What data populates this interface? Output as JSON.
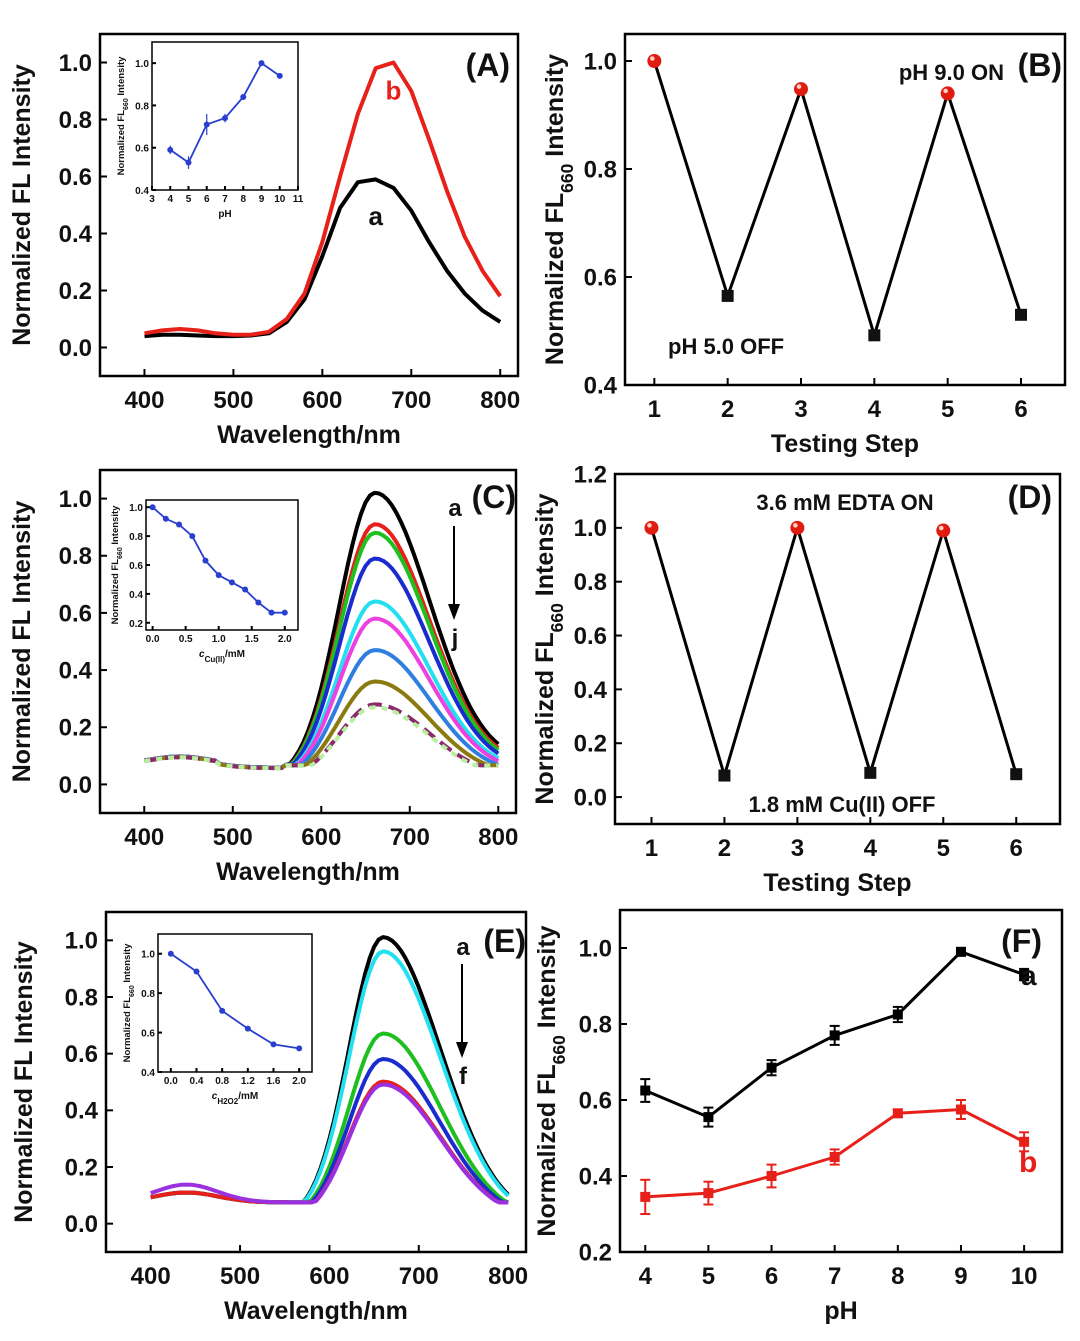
{
  "chart_data": [
    {
      "panel": "(A)",
      "type": "line",
      "xlabel": "Wavelength/nm",
      "ylabel": "Normalized FL Intensity",
      "xlim": [
        350,
        820
      ],
      "ylim": [
        -0.1,
        1.1
      ],
      "xticks": [
        400,
        500,
        600,
        700,
        800
      ],
      "yticks": [
        0.0,
        0.2,
        0.4,
        0.6,
        0.8,
        1.0
      ],
      "curve_labels": [
        "a",
        "b"
      ],
      "series": [
        {
          "name": "a",
          "color": "#000000",
          "x": [
            400,
            420,
            440,
            460,
            480,
            500,
            520,
            540,
            560,
            580,
            600,
            620,
            640,
            660,
            680,
            700,
            720,
            740,
            760,
            780,
            800
          ],
          "y": [
            0.04,
            0.045,
            0.045,
            0.042,
            0.04,
            0.04,
            0.042,
            0.05,
            0.09,
            0.17,
            0.32,
            0.49,
            0.58,
            0.59,
            0.56,
            0.48,
            0.37,
            0.27,
            0.19,
            0.13,
            0.09
          ]
        },
        {
          "name": "b",
          "color": "#e8201a",
          "x": [
            400,
            420,
            440,
            460,
            480,
            500,
            520,
            540,
            560,
            580,
            600,
            620,
            640,
            660,
            680,
            700,
            720,
            740,
            760,
            780,
            800
          ],
          "y": [
            0.05,
            0.06,
            0.065,
            0.06,
            0.05,
            0.045,
            0.045,
            0.055,
            0.1,
            0.19,
            0.37,
            0.6,
            0.82,
            0.98,
            1.0,
            0.9,
            0.73,
            0.55,
            0.39,
            0.27,
            0.18
          ]
        }
      ],
      "inset": {
        "type": "line",
        "xlabel": "pH",
        "ylabel": "Normalized FL660 Intensity",
        "xlim": [
          3,
          11
        ],
        "ylim": [
          0.4,
          1.1
        ],
        "xticks": [
          3,
          4,
          5,
          6,
          7,
          8,
          9,
          10,
          11
        ],
        "yticks": [
          0.4,
          0.6,
          0.8,
          1.0
        ],
        "color": "#2a3fcf",
        "x": [
          4,
          5,
          6,
          7,
          8,
          9,
          10
        ],
        "y": [
          0.59,
          0.53,
          0.71,
          0.74,
          0.84,
          1.0,
          0.94
        ],
        "err": [
          0.02,
          0.03,
          0.05,
          0.02,
          0.01,
          0.01,
          0.01
        ]
      }
    },
    {
      "panel": "(B)",
      "type": "line",
      "xlabel": "Testing Step",
      "ylabel": "Normalized FL660 Intensity",
      "xlim": [
        0.6,
        6.6
      ],
      "ylim": [
        0.4,
        1.05
      ],
      "xticks": [
        1,
        2,
        3,
        4,
        5,
        6
      ],
      "yticks": [
        0.4,
        0.6,
        0.8,
        1.0
      ],
      "annotations": [
        "pH 9.0 ON",
        "pH 5.0 OFF"
      ],
      "x": [
        1,
        2,
        3,
        4,
        5,
        6
      ],
      "y": [
        1.0,
        0.565,
        0.948,
        0.492,
        0.94,
        0.53
      ],
      "markers": [
        "on",
        "off",
        "on",
        "off",
        "on",
        "off"
      ]
    },
    {
      "panel": "(C)",
      "type": "line",
      "xlabel": "Wavelength/nm",
      "ylabel": "Normalized FL Intensity",
      "xlim": [
        350,
        820
      ],
      "ylim": [
        -0.1,
        1.1
      ],
      "xticks": [
        400,
        500,
        600,
        700,
        800
      ],
      "yticks": [
        0.0,
        0.2,
        0.4,
        0.6,
        0.8,
        1.0
      ],
      "arrow_labels": [
        "a",
        "j"
      ],
      "peaks": [
        1.02,
        0.91,
        0.88,
        0.79,
        0.64,
        0.58,
        0.47,
        0.36,
        0.28,
        0.27
      ],
      "colors": [
        "#000000",
        "#e8201a",
        "#1fbf1f",
        "#1a2bd0",
        "#22e0f0",
        "#ee3fe0",
        "#2f7fe0",
        "#8a7a10",
        "#8a2a6a",
        "#b8f0a0"
      ],
      "inset": {
        "type": "line",
        "xlabel": "cCu(II)/mM",
        "ylabel": "Normalized FL660 Intensity",
        "xlim": [
          -0.1,
          2.2
        ],
        "ylim": [
          0.15,
          1.05
        ],
        "xticks": [
          0.0,
          0.5,
          1.0,
          1.5,
          2.0
        ],
        "yticks": [
          0.2,
          0.4,
          0.6,
          0.8,
          1.0
        ],
        "color": "#2a3fcf",
        "x": [
          0.0,
          0.2,
          0.4,
          0.6,
          0.8,
          1.0,
          1.2,
          1.4,
          1.6,
          1.8,
          2.0
        ],
        "y": [
          1.0,
          0.92,
          0.88,
          0.8,
          0.63,
          0.53,
          0.48,
          0.43,
          0.34,
          0.27,
          0.27
        ]
      }
    },
    {
      "panel": "(D)",
      "type": "line",
      "xlabel": "Testing Step",
      "ylabel": "Normalized FL660 Intensity",
      "xlim": [
        0.5,
        6.6
      ],
      "ylim": [
        -0.1,
        1.2
      ],
      "xticks": [
        1,
        2,
        3,
        4,
        5,
        6
      ],
      "yticks": [
        0.0,
        0.2,
        0.4,
        0.6,
        0.8,
        1.0,
        1.2
      ],
      "annotations": [
        "3.6 mM EDTA ON",
        "1.8 mM Cu(II) OFF"
      ],
      "x": [
        1,
        2,
        3,
        4,
        5,
        6
      ],
      "y": [
        1.0,
        0.08,
        1.0,
        0.09,
        0.99,
        0.085
      ],
      "markers": [
        "on",
        "off",
        "on",
        "off",
        "on",
        "off"
      ]
    },
    {
      "panel": "(E)",
      "type": "line",
      "xlabel": "Wavelength/nm",
      "ylabel": "Normalized FL Intensity",
      "xlim": [
        350,
        820
      ],
      "ylim": [
        -0.1,
        1.1
      ],
      "xticks": [
        400,
        500,
        600,
        700,
        800
      ],
      "yticks": [
        0.0,
        0.2,
        0.4,
        0.6,
        0.8,
        1.0
      ],
      "arrow_labels": [
        "a",
        "f"
      ],
      "peaks": [
        1.0,
        0.95,
        0.66,
        0.57,
        0.49,
        0.48
      ],
      "colors": [
        "#000000",
        "#22e0f0",
        "#1fbf1f",
        "#1a2bd0",
        "#e8201a",
        "#9a30e0"
      ],
      "inset": {
        "type": "line",
        "xlabel": "cH2O2/mM",
        "ylabel": "Normalized FL660 Intensity",
        "xlim": [
          -0.2,
          2.2
        ],
        "ylim": [
          0.4,
          1.1
        ],
        "xticks": [
          0.0,
          0.4,
          0.8,
          1.2,
          1.6,
          2.0
        ],
        "yticks": [
          0.4,
          0.6,
          0.8,
          1.0
        ],
        "color": "#2a3fcf",
        "x": [
          0.0,
          0.4,
          0.8,
          1.2,
          1.6,
          2.0
        ],
        "y": [
          1.0,
          0.91,
          0.71,
          0.62,
          0.54,
          0.52
        ]
      }
    },
    {
      "panel": "(F)",
      "type": "line",
      "xlabel": "pH",
      "ylabel": "Normalized FL660 Intensity",
      "xlim": [
        3.6,
        10.6
      ],
      "ylim": [
        0.2,
        1.1
      ],
      "xticks": [
        4,
        5,
        6,
        7,
        8,
        9,
        10
      ],
      "yticks": [
        0.2,
        0.4,
        0.6,
        0.8,
        1.0
      ],
      "curve_labels": [
        "a",
        "b"
      ],
      "series": [
        {
          "name": "a",
          "color": "#000000",
          "x": [
            4,
            5,
            6,
            7,
            8,
            9,
            10
          ],
          "y": [
            0.625,
            0.555,
            0.685,
            0.77,
            0.825,
            0.99,
            0.93
          ],
          "err": [
            0.03,
            0.025,
            0.02,
            0.025,
            0.02,
            0.01,
            0.015
          ]
        },
        {
          "name": "b",
          "color": "#e8201a",
          "x": [
            4,
            5,
            6,
            7,
            8,
            9,
            10
          ],
          "y": [
            0.345,
            0.355,
            0.4,
            0.45,
            0.565,
            0.575,
            0.49
          ],
          "err": [
            0.045,
            0.03,
            0.03,
            0.02,
            0.01,
            0.025,
            0.025
          ]
        }
      ]
    }
  ]
}
